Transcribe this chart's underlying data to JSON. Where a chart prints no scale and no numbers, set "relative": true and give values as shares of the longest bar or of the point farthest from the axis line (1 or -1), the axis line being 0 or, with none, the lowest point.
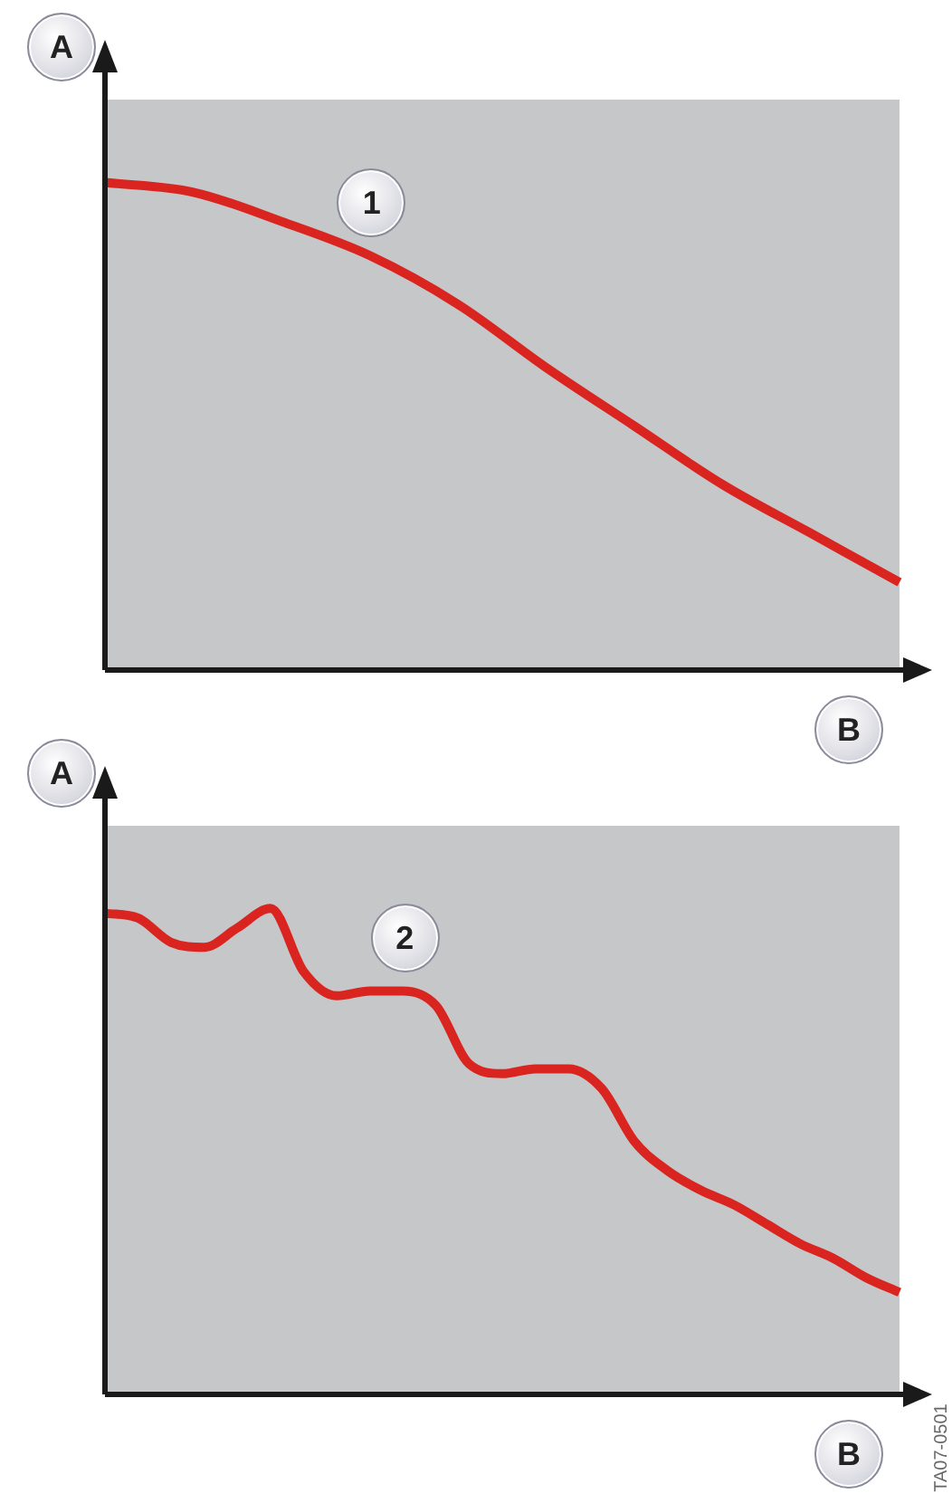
{
  "chart_data": [
    {
      "type": "line",
      "xlabel": "B",
      "ylabel": "A",
      "relative": true,
      "marker": "none",
      "categories": [
        null,
        null,
        null,
        null,
        null,
        null,
        null,
        null,
        null,
        null
      ],
      "series": [
        {
          "name": "1",
          "color": "#d9241f",
          "values": [
            1,
            0.98,
            0.92,
            0.85,
            0.75,
            0.62,
            0.5,
            0.38,
            0.28,
            0.18
          ]
        }
      ]
    },
    {
      "type": "line",
      "xlabel": "B",
      "ylabel": "A",
      "relative": true,
      "marker": "none",
      "categories": [
        null,
        null,
        null,
        null,
        null,
        null,
        null,
        null,
        null,
        null,
        null,
        null,
        null,
        null,
        null,
        null,
        null,
        null,
        null,
        null,
        null,
        null,
        null,
        null,
        null
      ],
      "series": [
        {
          "name": "2",
          "color": "#d9241f",
          "values": [
            0.99,
            0.98,
            0.93,
            0.92,
            0.96,
            1,
            0.87,
            0.82,
            0.83,
            0.83,
            0.8,
            0.68,
            0.66,
            0.67,
            0.67,
            0.63,
            0.52,
            0.46,
            0.42,
            0.39,
            0.35,
            0.31,
            0.28,
            0.24,
            0.21
          ]
        }
      ],
      "annotations": [
        "TA07-0501"
      ]
    }
  ]
}
